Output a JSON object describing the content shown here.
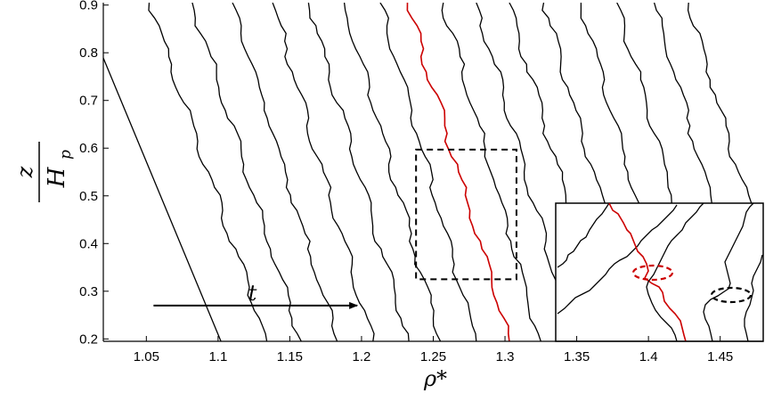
{
  "chart_data": {
    "type": "line",
    "title": "",
    "xlabel": "ρ*",
    "ylabel": {
      "numerator": "z",
      "denominator": "H",
      "subscript": "p"
    },
    "xlim": [
      1.02,
      1.48
    ],
    "ylim": [
      0.195,
      0.905
    ],
    "x_ticks": [
      "1.05",
      "1.1",
      "1.15",
      "1.2",
      "1.25",
      "1.3",
      "1.35",
      "1.4",
      "1.45"
    ],
    "y_ticks": [
      "0.2",
      "0.3",
      "0.4",
      "0.5",
      "0.6",
      "0.7",
      "0.8",
      "0.9"
    ],
    "grid": false,
    "series_color": "#000000",
    "highlight_color": "#cc0000",
    "series": [
      {
        "values": [
          [
            1.102,
            0.195
          ],
          [
            1.004,
            0.905
          ]
        ],
        "highlight": false,
        "smooth": true
      },
      {
        "values": [
          [
            1.134,
            0.195
          ],
          [
            1.052,
            0.905
          ]
        ],
        "highlight": false
      },
      {
        "values": [
          [
            1.158,
            0.195
          ],
          [
            1.082,
            0.905
          ]
        ],
        "highlight": false
      },
      {
        "values": [
          [
            1.183,
            0.195
          ],
          [
            1.11,
            0.905
          ]
        ],
        "highlight": false
      },
      {
        "values": [
          [
            1.208,
            0.195
          ],
          [
            1.138,
            0.905
          ]
        ],
        "highlight": false
      },
      {
        "values": [
          [
            1.233,
            0.195
          ],
          [
            1.163,
            0.905
          ]
        ],
        "highlight": false
      },
      {
        "values": [
          [
            1.255,
            0.195
          ],
          [
            1.188,
            0.905
          ]
        ],
        "highlight": false
      },
      {
        "values": [
          [
            1.28,
            0.195
          ],
          [
            1.213,
            0.905
          ]
        ],
        "highlight": false
      },
      {
        "values": [
          [
            1.303,
            0.195
          ],
          [
            1.232,
            0.905
          ]
        ],
        "highlight": true
      },
      {
        "values": [
          [
            1.325,
            0.195
          ],
          [
            1.257,
            0.905
          ]
        ],
        "highlight": false
      },
      {
        "values": [
          [
            1.348,
            0.195
          ],
          [
            1.28,
            0.905
          ]
        ],
        "highlight": false
      },
      {
        "values": [
          [
            1.372,
            0.195
          ],
          [
            1.303,
            0.905
          ]
        ],
        "highlight": false
      },
      {
        "values": [
          [
            1.396,
            0.195
          ],
          [
            1.327,
            0.905
          ]
        ],
        "highlight": false
      },
      {
        "values": [
          [
            1.42,
            0.195
          ],
          [
            1.353,
            0.905
          ]
        ],
        "highlight": false
      },
      {
        "values": [
          [
            1.446,
            0.195
          ],
          [
            1.378,
            0.905
          ]
        ],
        "highlight": false
      },
      {
        "values": [
          [
            1.472,
            0.195
          ],
          [
            1.404,
            0.905
          ]
        ],
        "highlight": false
      },
      {
        "values": [
          [
            1.498,
            0.195
          ],
          [
            1.428,
            0.905
          ]
        ],
        "highlight": false
      }
    ],
    "annotations": {
      "time_arrow": {
        "label": "t",
        "from": [
          1.055,
          0.27
        ],
        "to": [
          1.197,
          0.27
        ]
      },
      "zoom_box": {
        "x": [
          1.238,
          1.308
        ],
        "y": [
          0.325,
          0.597
        ]
      }
    }
  }
}
